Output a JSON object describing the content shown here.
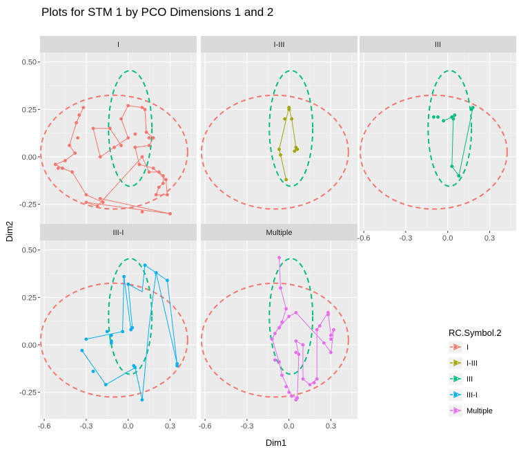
{
  "chart_data": {
    "type": "scatter",
    "title": "Plots for STM 1 by PCO Dimensions 1 and 2",
    "xlabel": "Dim1",
    "ylabel": "Dim2",
    "xlim": [
      -0.63,
      0.49
    ],
    "ylim": [
      -0.39,
      0.55
    ],
    "x_ticks": [
      -0.6,
      -0.3,
      0.0,
      0.3
    ],
    "x_tick_labels": [
      "-0.6",
      "-0.3",
      "0.0",
      "0.3"
    ],
    "y_ticks": [
      -0.25,
      0.0,
      0.25,
      0.5
    ],
    "y_tick_labels": [
      "-0.25",
      "0.00",
      "0.25",
      "0.50"
    ],
    "facet_layout": "3 columns x 2 rows",
    "grid": true,
    "legend_position": "right",
    "legend_title": "RC.Symbol.2",
    "series": [
      {
        "name": "I",
        "color": "#F8766D"
      },
      {
        "name": "I-III",
        "color": "#A3A500"
      },
      {
        "name": "III",
        "color": "#00BF7D"
      },
      {
        "name": "III-I",
        "color": "#00B0F6"
      },
      {
        "name": "Multiple",
        "color": "#E76BF3"
      }
    ],
    "ellipses": [
      {
        "name": "I-ellipse",
        "color": "#F8766D",
        "cx": -0.1,
        "cy": 0.025,
        "rx": 0.525,
        "ry": 0.3
      },
      {
        "name": "III-ellipse",
        "color": "#00BF7D",
        "cx": 0.015,
        "cy": 0.15,
        "rx": 0.155,
        "ry": 0.305
      }
    ],
    "panels": [
      {
        "label": "I",
        "series": "I",
        "points": [
          [
            -0.37,
            0.18
          ],
          [
            -0.35,
            0.22
          ],
          [
            -0.32,
            0.26
          ],
          [
            -0.36,
            0.1
          ],
          [
            -0.42,
            0.06
          ],
          [
            -0.38,
            0.02
          ],
          [
            -0.45,
            -0.02
          ],
          [
            -0.52,
            -0.04
          ],
          [
            -0.5,
            -0.06
          ],
          [
            -0.47,
            -0.06
          ],
          [
            -0.4,
            -0.08
          ],
          [
            -0.3,
            -0.2
          ],
          [
            -0.2,
            -0.22
          ],
          [
            -0.18,
            -0.24
          ],
          [
            -0.22,
            -0.26
          ],
          [
            -0.3,
            -0.24
          ],
          [
            0.1,
            -0.29
          ],
          [
            0.3,
            -0.3
          ],
          [
            -0.1,
            0.05
          ],
          [
            -0.05,
            0.06
          ],
          [
            0.0,
            0.1
          ],
          [
            0.05,
            0.12
          ],
          [
            -0.05,
            0.2
          ],
          [
            0.0,
            0.27
          ],
          [
            0.1,
            0.26
          ],
          [
            0.12,
            0.25
          ],
          [
            0.13,
            0.13
          ],
          [
            0.15,
            0.1
          ],
          [
            0.18,
            0.1
          ],
          [
            0.15,
            0.06
          ],
          [
            0.05,
            0.05
          ],
          [
            0.08,
            -0.04
          ],
          [
            0.18,
            -0.06
          ],
          [
            0.22,
            -0.08
          ],
          [
            0.25,
            -0.1
          ],
          [
            0.25,
            -0.14
          ],
          [
            0.22,
            -0.16
          ],
          [
            0.2,
            -0.2
          ],
          [
            0.28,
            -0.2
          ],
          [
            0.27,
            -0.12
          ],
          [
            0.1,
            0.0
          ],
          [
            0.15,
            -0.08
          ],
          [
            -0.2,
            0.0
          ],
          [
            -0.25,
            0.15
          ],
          [
            -0.13,
            0.15
          ]
        ],
        "path": [
          [
            -0.32,
            0.26
          ],
          [
            -0.37,
            0.18
          ],
          [
            -0.42,
            0.06
          ],
          [
            -0.38,
            0.02
          ],
          [
            -0.45,
            -0.02
          ],
          [
            -0.52,
            -0.04
          ],
          [
            -0.47,
            -0.06
          ],
          [
            -0.4,
            -0.08
          ],
          [
            -0.3,
            -0.2
          ],
          [
            -0.18,
            -0.24
          ],
          [
            -0.2,
            -0.22
          ],
          [
            0.3,
            -0.3
          ],
          [
            -0.3,
            -0.24
          ],
          [
            -0.22,
            -0.26
          ],
          [
            0.1,
            0.0
          ],
          [
            0.15,
            -0.08
          ],
          [
            0.22,
            -0.08
          ],
          [
            0.25,
            -0.1
          ],
          [
            0.25,
            -0.14
          ],
          [
            0.22,
            -0.16
          ],
          [
            0.2,
            -0.2
          ],
          [
            0.28,
            -0.2
          ],
          [
            0.27,
            -0.12
          ],
          [
            0.18,
            -0.06
          ],
          [
            0.08,
            -0.04
          ],
          [
            0.05,
            0.05
          ],
          [
            0.15,
            0.06
          ],
          [
            0.18,
            0.1
          ],
          [
            0.13,
            0.13
          ],
          [
            0.12,
            0.25
          ],
          [
            0.1,
            0.26
          ],
          [
            0.0,
            0.27
          ],
          [
            -0.05,
            0.2
          ],
          [
            0.0,
            0.1
          ],
          [
            -0.1,
            0.05
          ],
          [
            -0.2,
            0.0
          ],
          [
            -0.25,
            0.15
          ],
          [
            -0.13,
            0.15
          ],
          [
            -0.05,
            0.06
          ]
        ]
      },
      {
        "label": "I-III",
        "series": "I-III",
        "points": [
          [
            0.0,
            0.26
          ],
          [
            0.0,
            0.25
          ],
          [
            -0.03,
            0.2
          ],
          [
            0.02,
            0.2
          ],
          [
            -0.06,
            0.01
          ],
          [
            -0.07,
            0.04
          ],
          [
            0.05,
            0.05
          ],
          [
            0.06,
            0.04
          ],
          [
            0.04,
            0.03
          ],
          [
            -0.02,
            -0.12
          ]
        ],
        "path": [
          [
            -0.02,
            -0.12
          ],
          [
            -0.06,
            0.01
          ],
          [
            -0.07,
            0.04
          ],
          [
            0.0,
            0.26
          ],
          [
            0.02,
            0.2
          ],
          [
            0.05,
            0.05
          ],
          [
            0.04,
            0.03
          ],
          [
            0.06,
            0.04
          ]
        ]
      },
      {
        "label": "III",
        "series": "III",
        "points": [
          [
            -0.1,
            0.21
          ],
          [
            -0.07,
            0.21
          ],
          [
            -0.03,
            0.19
          ],
          [
            0.03,
            0.21
          ],
          [
            0.05,
            0.22
          ],
          [
            0.04,
            0.2
          ],
          [
            0.03,
            -0.05
          ],
          [
            0.08,
            -0.1
          ],
          [
            0.18,
            0.26
          ],
          [
            0.17,
            0.25
          ]
        ],
        "path": [
          [
            -0.03,
            0.19
          ],
          [
            0.03,
            0.21
          ],
          [
            0.05,
            0.22
          ],
          [
            0.04,
            0.2
          ],
          [
            0.03,
            -0.05
          ],
          [
            0.08,
            -0.1
          ],
          [
            0.18,
            0.26
          ]
        ]
      },
      {
        "label": "III-I",
        "series": "III-I",
        "points": [
          [
            -0.3,
            0.03
          ],
          [
            -0.15,
            0.07
          ],
          [
            -0.12,
            0.05
          ],
          [
            -0.12,
            0.02
          ],
          [
            -0.12,
            0.01
          ],
          [
            -0.04,
            0.07
          ],
          [
            0.03,
            0.09
          ],
          [
            0.02,
            0.08
          ],
          [
            -0.03,
            0.36
          ],
          [
            0.0,
            0.32
          ],
          [
            0.12,
            0.42
          ],
          [
            0.2,
            0.38
          ],
          [
            0.28,
            0.34
          ],
          [
            0.35,
            -0.1
          ],
          [
            0.35,
            -0.11
          ],
          [
            0.1,
            -0.29
          ],
          [
            0.05,
            -0.12
          ],
          [
            0.04,
            -0.11
          ],
          [
            -0.16,
            -0.21
          ],
          [
            -0.33,
            -0.03
          ],
          [
            -0.25,
            -0.14
          ]
        ],
        "path": [
          [
            -0.3,
            0.03
          ],
          [
            -0.04,
            0.07
          ],
          [
            -0.03,
            0.36
          ],
          [
            0.02,
            0.08
          ],
          [
            0.03,
            0.09
          ],
          [
            0.0,
            0.32
          ],
          [
            0.1,
            0.28
          ],
          [
            0.12,
            0.42
          ],
          [
            0.28,
            0.34
          ],
          [
            0.35,
            -0.1
          ],
          [
            0.2,
            0.38
          ],
          [
            0.15,
            0.1
          ],
          [
            0.1,
            -0.29
          ],
          [
            0.05,
            -0.12
          ],
          [
            -0.16,
            -0.21
          ],
          [
            -0.33,
            -0.03
          ]
        ]
      },
      {
        "label": "Multiple",
        "series": "Multiple",
        "points": [
          [
            -0.07,
            0.46
          ],
          [
            -0.06,
            0.3
          ],
          [
            -0.02,
            0.19
          ],
          [
            -0.05,
            0.12
          ],
          [
            -0.07,
            0.09
          ],
          [
            -0.1,
            0.06
          ],
          [
            -0.12,
            0.03
          ],
          [
            -0.1,
            -0.08
          ],
          [
            -0.07,
            -0.09
          ],
          [
            -0.05,
            -0.16
          ],
          [
            -0.02,
            -0.22
          ],
          [
            0.0,
            -0.25
          ],
          [
            0.02,
            -0.27
          ],
          [
            0.05,
            -0.29
          ],
          [
            0.06,
            -0.28
          ],
          [
            0.07,
            -0.05
          ],
          [
            0.05,
            -0.04
          ],
          [
            0.05,
            0.02
          ],
          [
            0.1,
            0.0
          ],
          [
            0.1,
            -0.18
          ],
          [
            0.15,
            -0.21
          ],
          [
            0.18,
            -0.2
          ],
          [
            0.2,
            -0.18
          ],
          [
            0.2,
            0.08
          ],
          [
            0.22,
            0.1
          ],
          [
            0.3,
            0.05
          ],
          [
            0.3,
            0.03
          ],
          [
            0.32,
            0.08
          ],
          [
            0.28,
            0.17
          ],
          [
            0.28,
            0.16
          ],
          [
            0.3,
            -0.04
          ],
          [
            0.25,
            0.01
          ],
          [
            0.0,
            0.15
          ],
          [
            0.05,
            0.17
          ]
        ],
        "path": [
          [
            -0.07,
            0.46
          ],
          [
            -0.06,
            0.3
          ],
          [
            -0.02,
            0.19
          ],
          [
            -0.05,
            0.12
          ],
          [
            -0.1,
            0.06
          ],
          [
            -0.12,
            0.03
          ],
          [
            -0.07,
            -0.09
          ],
          [
            -0.05,
            -0.16
          ],
          [
            0.02,
            -0.27
          ],
          [
            0.06,
            -0.28
          ],
          [
            0.07,
            -0.05
          ],
          [
            0.05,
            0.02
          ],
          [
            0.1,
            0.0
          ],
          [
            0.1,
            -0.18
          ],
          [
            0.15,
            -0.21
          ],
          [
            0.2,
            -0.18
          ],
          [
            0.2,
            0.08
          ],
          [
            0.28,
            0.17
          ],
          [
            0.3,
            0.05
          ],
          [
            0.32,
            0.08
          ],
          [
            0.3,
            -0.04
          ],
          [
            0.25,
            0.01
          ],
          [
            0.05,
            0.17
          ],
          [
            0.0,
            0.15
          ],
          [
            -0.07,
            0.09
          ]
        ]
      }
    ]
  }
}
